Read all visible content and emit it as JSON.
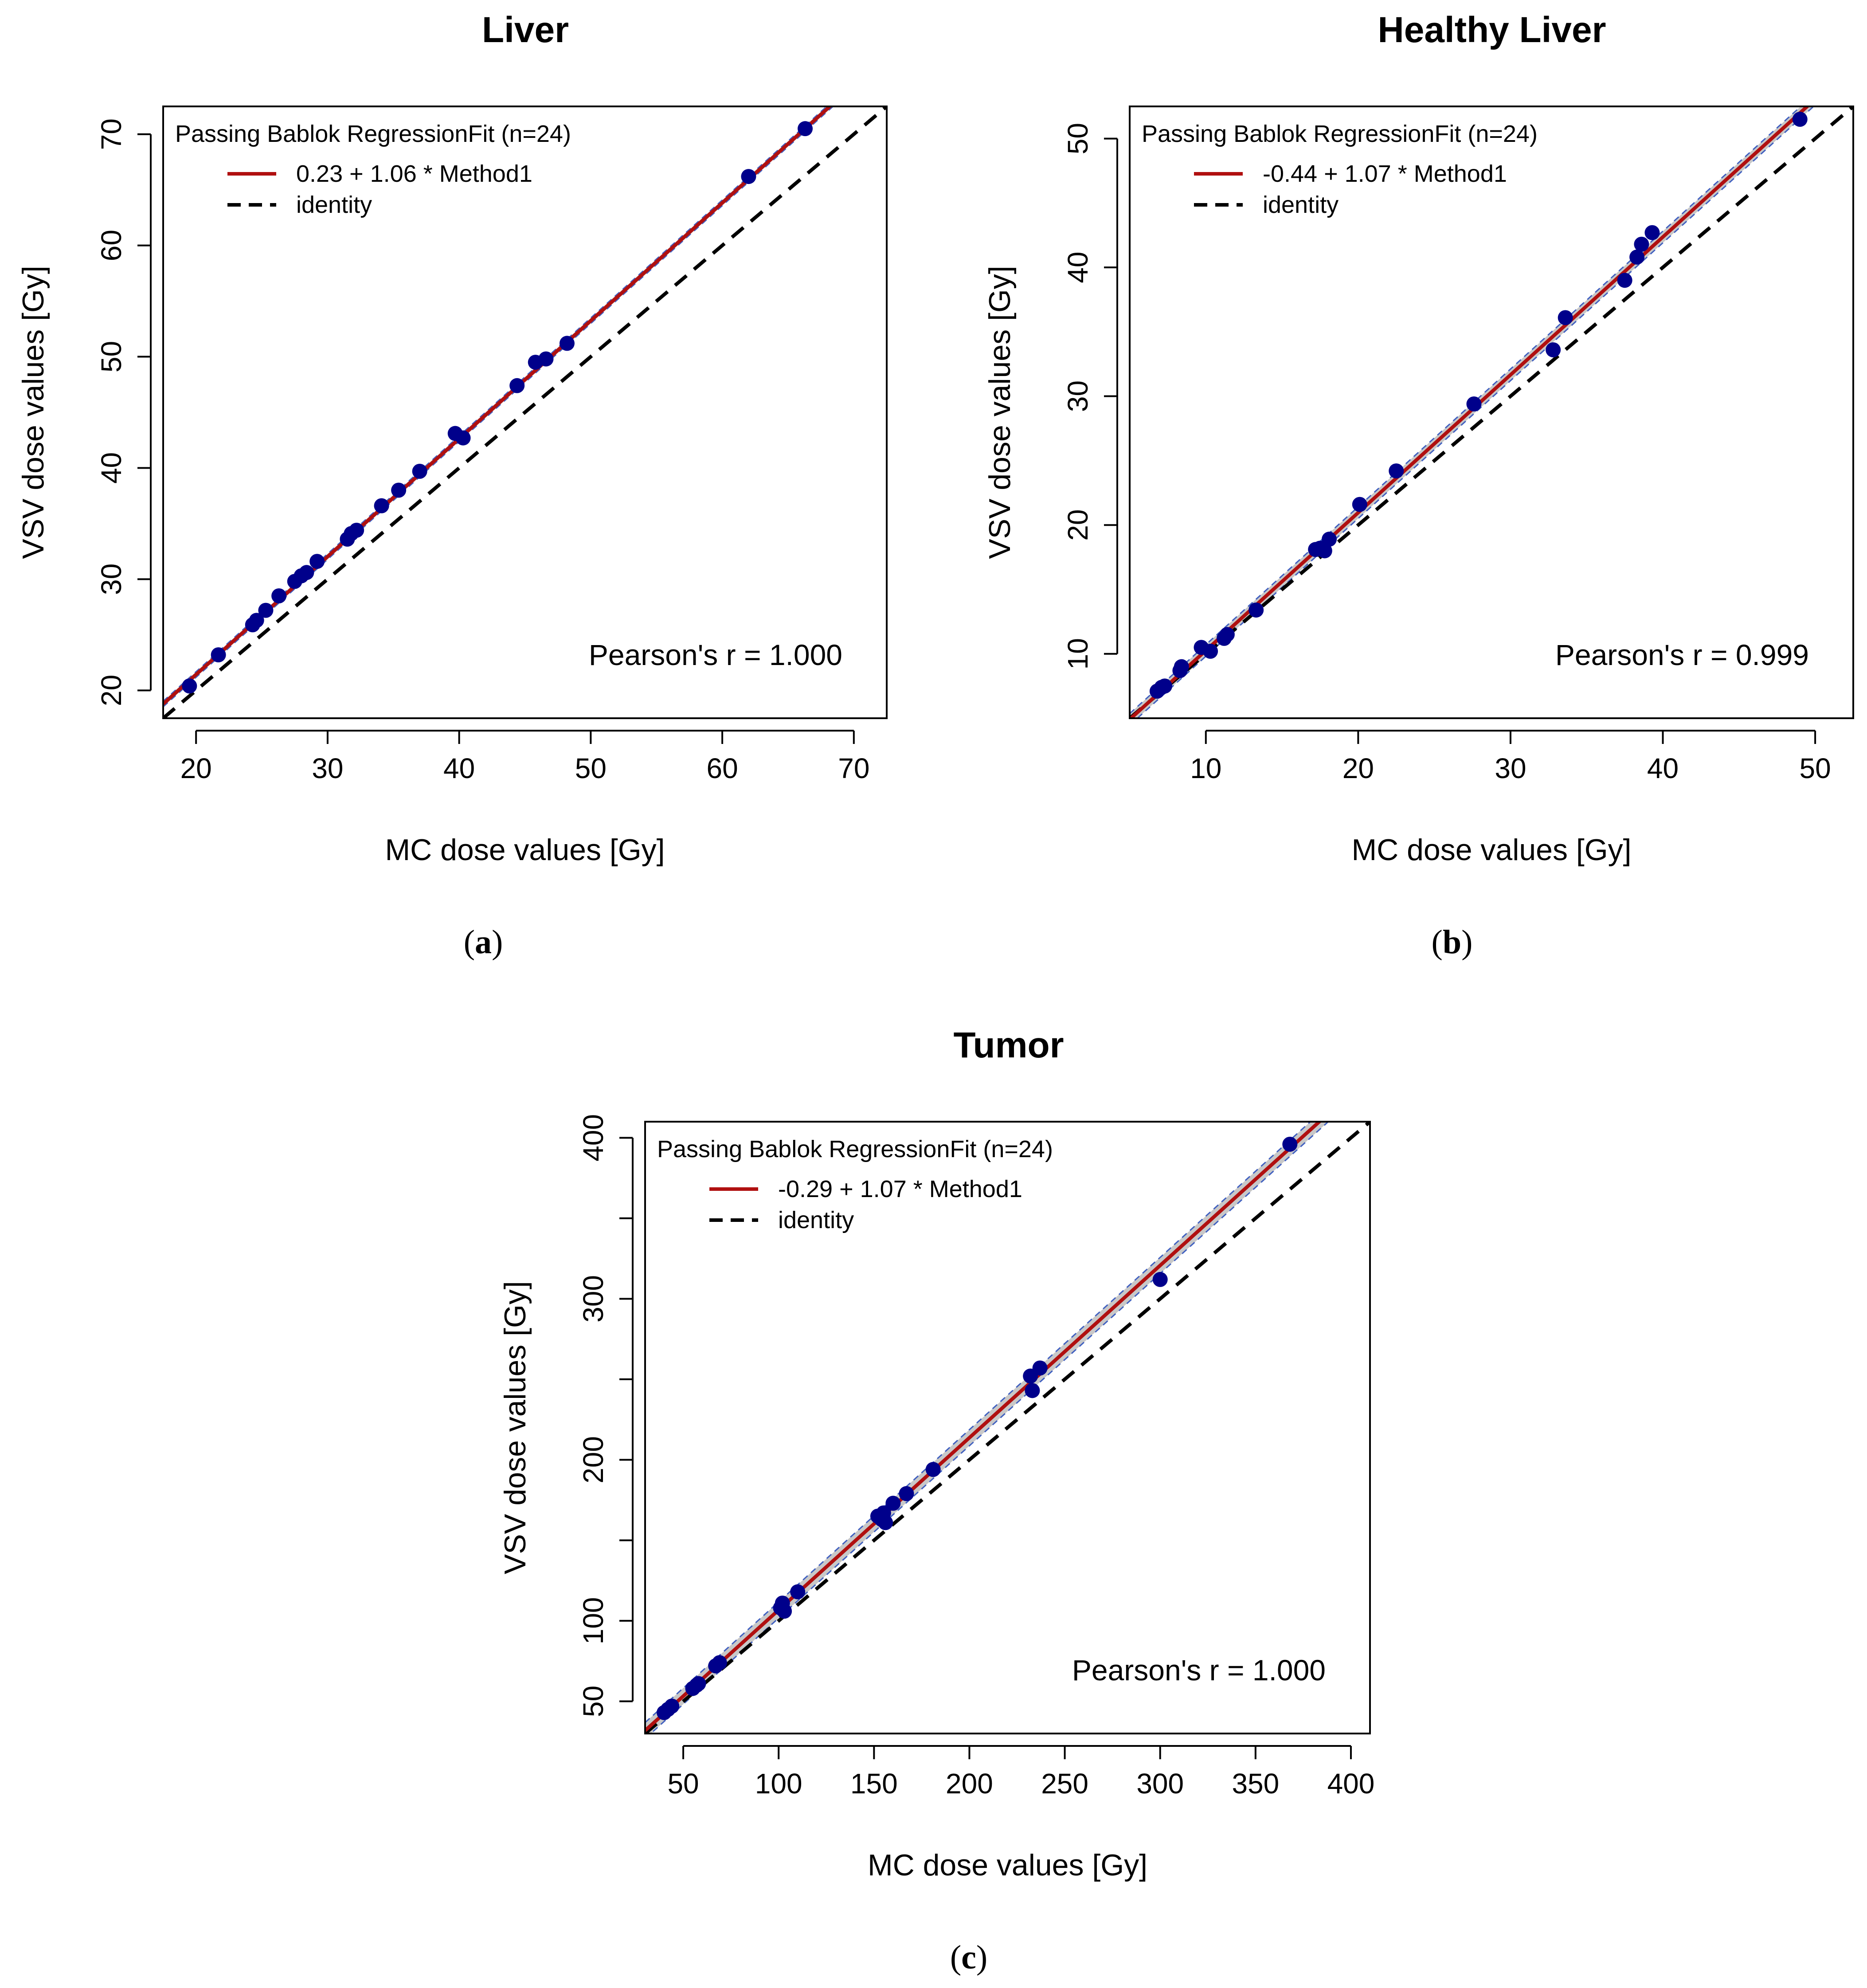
{
  "chart_data": [
    {
      "type": "scatter",
      "title": "Liver",
      "caption": "a",
      "xlabel": "MC dose values [Gy]",
      "ylabel": "VSV dose values [Gy]",
      "xlim": [
        17.5,
        72.5
      ],
      "ylim": [
        17.5,
        72.5
      ],
      "xticks": [
        20,
        30,
        40,
        50,
        60,
        70
      ],
      "yticks": [
        20,
        30,
        40,
        50,
        60,
        70
      ],
      "legend": {
        "title": "Passing Bablok RegressionFit (n=24)",
        "fit_label": "0.23 + 1.06 * Method1",
        "identity_label": "identity",
        "position": "top-left"
      },
      "fit": {
        "intercept": 0.23,
        "slope": 1.06
      },
      "stat": "Pearson's r = 1.000",
      "ci_band": 0.25,
      "points": {
        "x": [
          19.5,
          21.7,
          24.3,
          24.6,
          25.3,
          26.3,
          27.5,
          28.0,
          28.4,
          29.2,
          31.5,
          31.8,
          32.2,
          34.1,
          35.4,
          37.0,
          39.7,
          40.3,
          44.4,
          45.8,
          46.6,
          48.2,
          62.0,
          66.3
        ],
        "y": [
          20.4,
          23.2,
          25.9,
          26.3,
          27.2,
          28.5,
          29.8,
          30.3,
          30.6,
          31.6,
          33.6,
          34.1,
          34.4,
          36.6,
          38.0,
          39.7,
          43.1,
          42.7,
          47.4,
          49.5,
          49.8,
          51.2,
          66.2,
          70.5
        ]
      }
    },
    {
      "type": "scatter",
      "title": "Healthy Liver",
      "caption": "b",
      "xlabel": "MC dose values [Gy]",
      "ylabel": "VSV dose values [Gy]",
      "xlim": [
        5,
        52.5
      ],
      "ylim": [
        5,
        52.5
      ],
      "xticks": [
        10,
        20,
        30,
        40,
        50
      ],
      "yticks": [
        10,
        20,
        30,
        40,
        50
      ],
      "legend": {
        "title": "Passing Bablok RegressionFit (n=24)",
        "fit_label": "-0.44 + 1.07 * Method1",
        "identity_label": "identity",
        "position": "top-left"
      },
      "fit": {
        "intercept": -0.44,
        "slope": 1.07
      },
      "stat": "Pearson's r = 0.999",
      "ci_band": 0.45,
      "points": {
        "x": [
          6.8,
          7.1,
          8.3,
          8.4,
          9.7,
          10.3,
          11.2,
          11.4,
          13.3,
          17.2,
          17.8,
          18.1,
          20.1,
          22.5,
          27.6,
          32.8,
          33.6,
          37.5,
          38.3,
          38.6,
          39.3,
          49.0,
          7.3,
          17.5
        ],
        "y": [
          7.1,
          7.4,
          8.7,
          9.0,
          10.5,
          10.2,
          11.2,
          11.5,
          13.4,
          18.1,
          18.0,
          18.9,
          21.6,
          24.2,
          29.4,
          33.6,
          36.1,
          39.0,
          40.8,
          41.8,
          42.7,
          51.5,
          7.5,
          18.2
        ]
      }
    },
    {
      "type": "scatter",
      "title": "Tumor",
      "caption": "c",
      "xlabel": "MC dose values [Gy]",
      "ylabel": "VSV dose values [Gy]",
      "xlim": [
        30,
        410
      ],
      "ylim": [
        30,
        410
      ],
      "xticks": [
        50,
        100,
        150,
        200,
        250,
        300,
        350,
        400
      ],
      "yticks": [
        50,
        100,
        200,
        300,
        400
      ],
      "yminor_ticks": [
        150,
        250,
        350
      ],
      "legend": {
        "title": "Passing Bablok RegressionFit (n=24)",
        "fit_label": "-0.29 + 1.07 * Method1",
        "identity_label": "identity",
        "position": "top-left"
      },
      "fit": {
        "intercept": -0.29,
        "slope": 1.07
      },
      "stat": "Pearson's r = 1.000",
      "ci_band": 5,
      "points": {
        "x": [
          40,
          44,
          55,
          58,
          67,
          69,
          101,
          102,
          110,
          152,
          155,
          156,
          160,
          167,
          181,
          232,
          233,
          237,
          300,
          368,
          42,
          57,
          103,
          154
        ],
        "y": [
          43,
          47,
          58,
          61,
          72,
          74,
          108,
          111,
          118,
          165,
          167,
          161,
          173,
          179,
          194,
          252,
          243,
          257,
          312,
          396,
          45,
          60,
          106,
          163
        ]
      }
    }
  ],
  "colors": {
    "fit_line": "#b01010",
    "points": "#00008b",
    "identity": "#000000",
    "ci_band": "#c8c8c8",
    "ci_border": "#4060c0"
  }
}
